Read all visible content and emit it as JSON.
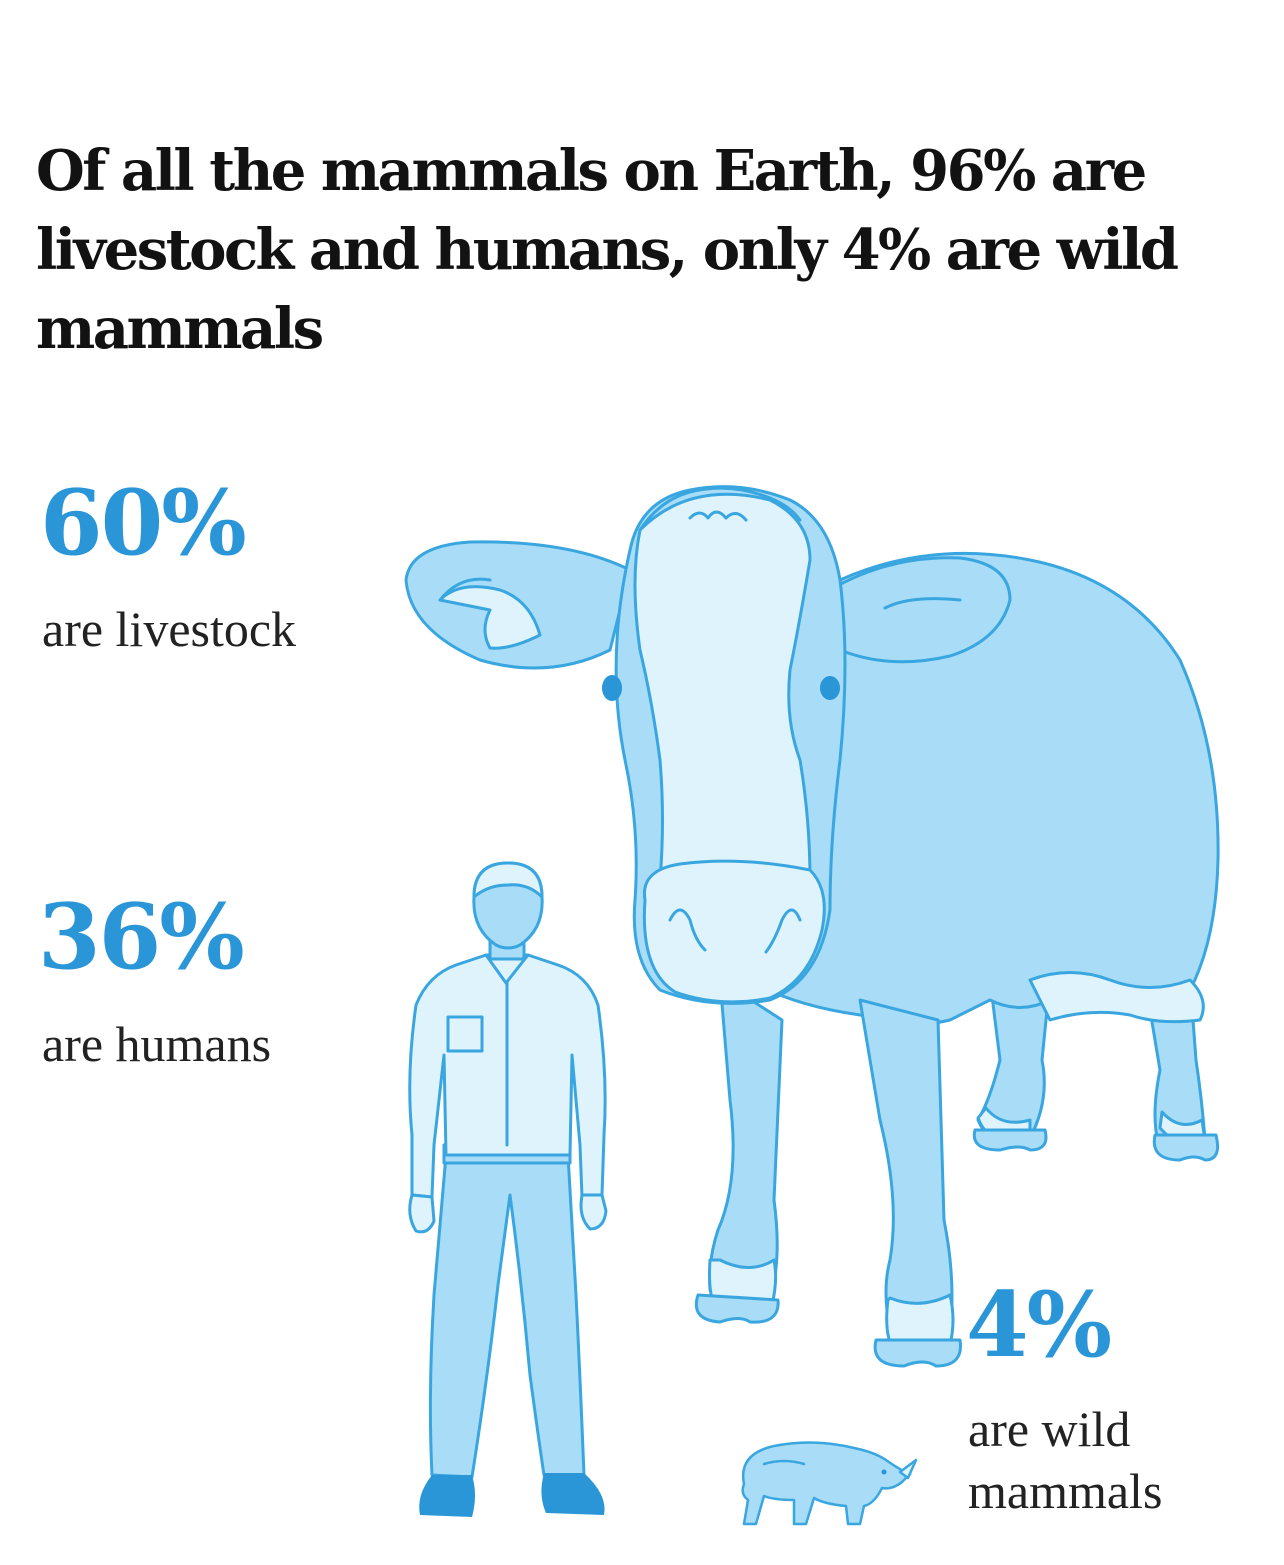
{
  "headline": "Of all the mammals on Earth, 96% are livestock and humans, only 4% are wild mammals",
  "stats": {
    "livestock": {
      "value": "60%",
      "label": "are livestock"
    },
    "humans": {
      "value": "36%",
      "label": "are humans"
    },
    "wild": {
      "value": "4%",
      "label": "are wild mammals"
    }
  },
  "colors": {
    "accent": "#2a96d8",
    "fill_light": "#dff3fd",
    "fill_mid": "#a8dcf7",
    "outline": "#3aa6e0",
    "headline": "#121212"
  },
  "illustrations": [
    "cow-illustration",
    "human-illustration",
    "rhino-illustration"
  ]
}
